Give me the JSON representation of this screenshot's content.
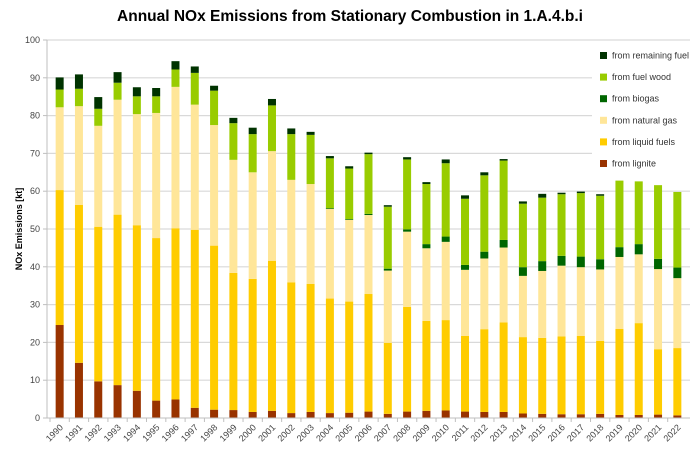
{
  "chart_data": {
    "type": "bar",
    "stacked": true,
    "title": "Annual NOx Emissions from Stationary Combustion in 1.A.4.b.i",
    "xlabel": "",
    "ylabel": "NOx Emissions [kt]",
    "ylim": [
      0,
      100
    ],
    "yticks": [
      "0",
      "10",
      "20",
      "30",
      "40",
      "50",
      "60",
      "70",
      "80",
      "90",
      "100"
    ],
    "grid": true,
    "legend_position": "right",
    "categories": [
      "1990",
      "1991",
      "1992",
      "1993",
      "1994",
      "1995",
      "1996",
      "1997",
      "1998",
      "1999",
      "2000",
      "2001",
      "2002",
      "2003",
      "2004",
      "2005",
      "2006",
      "2007",
      "2008",
      "2009",
      "2010",
      "2011",
      "2012",
      "2013",
      "2014",
      "2015",
      "2016",
      "2017",
      "2018",
      "2019",
      "2020",
      "2021",
      "2022"
    ],
    "series": [
      {
        "name": "from lignite",
        "color": "#993300",
        "values": [
          24.6,
          14.6,
          9.7,
          8.7,
          7.2,
          4.6,
          4.9,
          2.7,
          2.2,
          2.1,
          1.6,
          1.9,
          1.3,
          1.6,
          1.3,
          1.4,
          1.7,
          1.1,
          1.7,
          1.9,
          2.0,
          1.7,
          1.6,
          1.6,
          1.2,
          1.1,
          1.0,
          1.0,
          1.1,
          0.8,
          0.8,
          0.9,
          0.7
        ]
      },
      {
        "name": "from liquid fuels",
        "color": "#FFCC00",
        "values": [
          35.7,
          41.8,
          40.9,
          45.1,
          43.8,
          43.0,
          45.3,
          47.1,
          43.4,
          36.3,
          35.2,
          39.7,
          34.6,
          33.9,
          30.3,
          29.4,
          31.1,
          18.8,
          27.7,
          23.8,
          23.9,
          20.0,
          21.9,
          23.7,
          20.2,
          20.1,
          20.6,
          20.7,
          19.3,
          22.8,
          24.3,
          17.3,
          17.8
        ]
      },
      {
        "name": "from natural gas",
        "color": "#FFE699",
        "values": [
          21.9,
          26.1,
          26.7,
          30.4,
          29.4,
          33.1,
          37.4,
          33.1,
          31.9,
          29.9,
          28.2,
          29.0,
          27.1,
          26.4,
          23.7,
          21.6,
          20.9,
          19.1,
          19.9,
          19.2,
          20.7,
          17.5,
          18.7,
          19.8,
          16.2,
          17.7,
          18.7,
          18.2,
          18.9,
          19.0,
          18.2,
          21.2,
          18.5
        ]
      },
      {
        "name": "from biogas",
        "color": "#006600",
        "values": [
          0,
          0,
          0,
          0,
          0,
          0,
          0,
          0,
          0,
          0,
          0,
          0,
          0,
          0,
          0.2,
          0.2,
          0.3,
          0.5,
          0.6,
          1.1,
          1.4,
          1.3,
          1.8,
          2.0,
          2.3,
          2.6,
          2.6,
          2.8,
          2.7,
          2.6,
          2.7,
          2.7,
          2.8
        ]
      },
      {
        "name": "from fuel wood",
        "color": "#99CC00",
        "values": [
          4.7,
          4.6,
          4.5,
          4.5,
          4.7,
          4.4,
          4.6,
          8.4,
          9.1,
          9.7,
          10.1,
          12.1,
          12.1,
          13.0,
          13.2,
          13.4,
          15.8,
          16.4,
          18.5,
          15.9,
          19.4,
          17.5,
          20.2,
          21.0,
          16.8,
          16.8,
          16.3,
          16.8,
          16.8,
          17.6,
          16.6,
          19.5,
          20.0
        ]
      },
      {
        "name": "from remaining fuel",
        "color": "#003300",
        "values": [
          3.2,
          3.8,
          3.1,
          2.8,
          2.4,
          2.2,
          2.2,
          1.7,
          1.3,
          1.4,
          1.7,
          1.7,
          1.5,
          0.8,
          0.6,
          0.6,
          0.4,
          0.4,
          0.6,
          0.5,
          1.0,
          0.9,
          0.8,
          0.4,
          0.6,
          1.0,
          0.4,
          0.4,
          0.4,
          0.0,
          0.0,
          0.0,
          0.0
        ]
      }
    ],
    "legend_order": [
      "from remaining fuel",
      "from fuel wood",
      "from biogas",
      "from natural gas",
      "from liquid fuels",
      "from lignite"
    ]
  },
  "colors": {
    "gridline": "#D9D9D9",
    "axis": "#BFBFBF"
  }
}
